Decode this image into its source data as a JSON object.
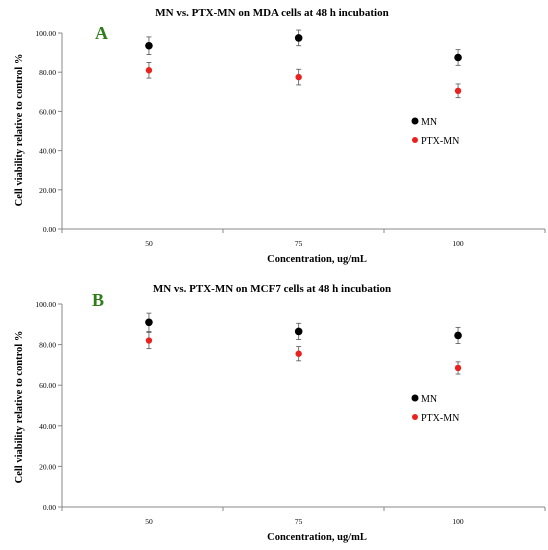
{
  "chart_data": [
    {
      "type": "scatter",
      "panel_label": "A",
      "title": "MN vs. PTX-MN on MDA cells at 48 h incubation",
      "xlabel": "Concentration, ug/mL",
      "ylabel": "Cell viability relative to control  %",
      "categories": [
        "50",
        "75",
        "100"
      ],
      "ylim": [
        0,
        100
      ],
      "yticks": [
        "0.00",
        "20.00",
        "40.00",
        "60.00",
        "80.00",
        "100.00"
      ],
      "legend_position": "right",
      "grid": false,
      "series": [
        {
          "name": "MN",
          "color": "#000000",
          "values": [
            93.5,
            97.5,
            87.5
          ],
          "errors": [
            4.5,
            4,
            4
          ]
        },
        {
          "name": "PTX-MN",
          "color": "#e8231f",
          "values": [
            81,
            77.5,
            70.5
          ],
          "errors": [
            4,
            4,
            3.5
          ]
        }
      ]
    },
    {
      "type": "scatter",
      "panel_label": "B",
      "title": "MN vs. PTX-MN on MCF7 cells at 48 h incubation",
      "xlabel": "Concentration, ug/mL",
      "ylabel": "Cell viability relative to control  %",
      "categories": [
        "50",
        "75",
        "100"
      ],
      "ylim": [
        0,
        100
      ],
      "yticks": [
        "0.00",
        "20.00",
        "40.00",
        "60.00",
        "80.00",
        "100.00"
      ],
      "legend_position": "right",
      "grid": false,
      "series": [
        {
          "name": "MN",
          "color": "#000000",
          "values": [
            91,
            86.5,
            84.5
          ],
          "errors": [
            4.5,
            4,
            4
          ]
        },
        {
          "name": "PTX-MN",
          "color": "#e8231f",
          "values": [
            82,
            75.5,
            68.5
          ],
          "errors": [
            4,
            3.5,
            3
          ]
        }
      ]
    }
  ],
  "colors": {
    "panel_label": "#2e7d1a",
    "axis": "#888888"
  }
}
